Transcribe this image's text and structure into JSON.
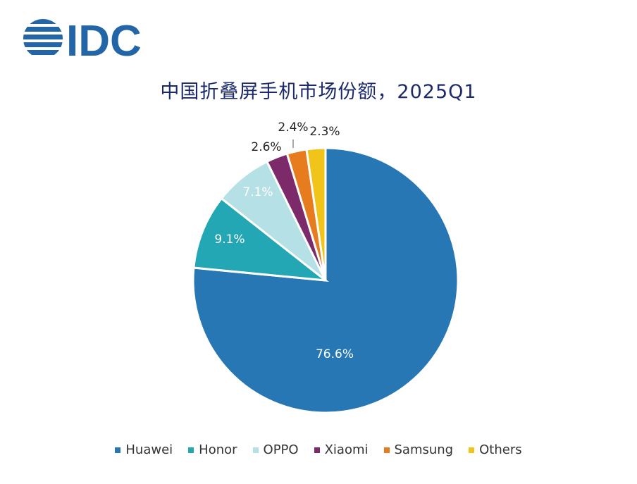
{
  "brand": {
    "logo_text": "IDC",
    "logo_color": "#2266a8"
  },
  "chart_data": {
    "type": "pie",
    "title": "中国折叠屏手机市场份额，2025Q1",
    "slices": [
      {
        "name": "Huawei",
        "value": 76.6,
        "label": "76.6%",
        "color": "#2677b4"
      },
      {
        "name": "Honor",
        "value": 9.1,
        "label": "9.1%",
        "color": "#23a7b5"
      },
      {
        "name": "OPPO",
        "value": 7.1,
        "label": "7.1%",
        "color": "#b5e0e5"
      },
      {
        "name": "Xiaomi",
        "value": 2.6,
        "label": "2.6%",
        "color": "#7c2a6a"
      },
      {
        "name": "Samsung",
        "value": 2.4,
        "label": "2.4%",
        "color": "#e67c1e"
      },
      {
        "name": "Others",
        "value": 2.3,
        "label": "2.3%",
        "color": "#f0c419"
      }
    ],
    "legend_position": "bottom"
  }
}
